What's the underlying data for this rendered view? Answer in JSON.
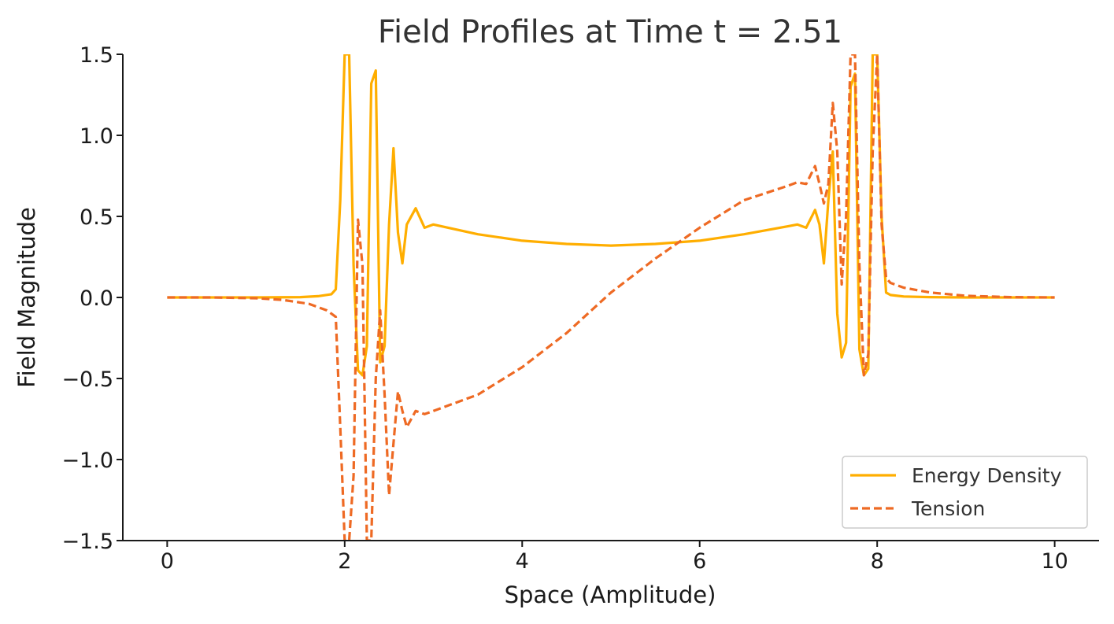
{
  "chart_data": {
    "type": "line",
    "title": "Field Profiles at Time t = 2.51",
    "xlabel": "Space (Amplitude)",
    "ylabel": "Field Magnitude",
    "xlim": [
      -0.5,
      10.5
    ],
    "ylim": [
      -1.5,
      1.5
    ],
    "xticks": [
      0,
      2,
      4,
      6,
      8,
      10
    ],
    "xtick_labels": [
      "0",
      "2",
      "4",
      "6",
      "8",
      "10"
    ],
    "yticks": [
      -1.5,
      -1.0,
      -0.5,
      0.0,
      0.5,
      1.0,
      1.5
    ],
    "ytick_labels": [
      "−1.5",
      "−1.0",
      "−0.5",
      "0.0",
      "0.5",
      "1.0",
      "1.5"
    ],
    "grid": false,
    "legend_position": "bottom-right",
    "series": [
      {
        "name": "Energy Density",
        "color": "#FFAE00",
        "linestyle": "solid",
        "x": [
          0,
          0.5,
          1.0,
          1.5,
          1.7,
          1.85,
          1.9,
          1.95,
          2.0,
          2.05,
          2.1,
          2.15,
          2.2,
          2.25,
          2.3,
          2.35,
          2.4,
          2.45,
          2.5,
          2.55,
          2.6,
          2.65,
          2.7,
          2.8,
          2.9,
          3.0,
          3.5,
          4.0,
          4.5,
          5.0,
          5.5,
          6.0,
          6.5,
          7.0,
          7.1,
          7.2,
          7.3,
          7.35,
          7.4,
          7.45,
          7.5,
          7.55,
          7.6,
          7.65,
          7.7,
          7.75,
          7.8,
          7.85,
          7.9,
          7.95,
          8.0,
          8.05,
          8.1,
          8.15,
          8.3,
          8.6,
          9.0,
          9.5,
          10.0
        ],
        "y": [
          0.0,
          0.0,
          0.0,
          0.002,
          0.008,
          0.02,
          0.05,
          0.6,
          1.5,
          1.5,
          0.2,
          -0.45,
          -0.48,
          -0.3,
          1.32,
          1.4,
          -0.4,
          -0.3,
          0.45,
          0.92,
          0.4,
          0.21,
          0.45,
          0.55,
          0.43,
          0.45,
          0.39,
          0.35,
          0.33,
          0.32,
          0.33,
          0.35,
          0.39,
          0.44,
          0.45,
          0.43,
          0.54,
          0.45,
          0.21,
          0.6,
          0.9,
          -0.1,
          -0.37,
          -0.28,
          1.3,
          1.38,
          -0.32,
          -0.48,
          -0.44,
          1.5,
          1.5,
          0.5,
          0.03,
          0.015,
          0.006,
          0.002,
          0.0,
          0.0,
          0.0
        ]
      },
      {
        "name": "Tension",
        "color": "#EE6A24",
        "linestyle": "dashed",
        "x": [
          0,
          0.5,
          1.0,
          1.3,
          1.6,
          1.8,
          1.85,
          1.9,
          1.95,
          2.0,
          2.05,
          2.1,
          2.15,
          2.2,
          2.25,
          2.3,
          2.35,
          2.4,
          2.45,
          2.5,
          2.55,
          2.6,
          2.65,
          2.7,
          2.8,
          2.9,
          3.0,
          3.5,
          4.0,
          4.5,
          5.0,
          5.5,
          6.0,
          6.5,
          7.0,
          7.1,
          7.2,
          7.3,
          7.35,
          7.4,
          7.45,
          7.5,
          7.55,
          7.6,
          7.65,
          7.7,
          7.75,
          7.8,
          7.85,
          7.9,
          7.95,
          8.0,
          8.05,
          8.1,
          8.15,
          8.3,
          8.6,
          9.0,
          9.5,
          10.0
        ],
        "y": [
          0.0,
          0.0,
          -0.005,
          -0.015,
          -0.04,
          -0.08,
          -0.1,
          -0.12,
          -0.8,
          -1.5,
          -1.5,
          -1.1,
          0.48,
          0.2,
          -1.5,
          -1.5,
          -0.5,
          -0.08,
          -0.6,
          -1.22,
          -0.9,
          -0.58,
          -0.7,
          -0.8,
          -0.7,
          -0.72,
          -0.7,
          -0.6,
          -0.43,
          -0.22,
          0.03,
          0.24,
          0.43,
          0.6,
          0.69,
          0.71,
          0.7,
          0.81,
          0.7,
          0.58,
          0.7,
          1.2,
          0.9,
          0.08,
          0.5,
          1.5,
          1.5,
          0.2,
          -0.48,
          -0.35,
          0.9,
          1.5,
          0.45,
          0.12,
          0.09,
          0.06,
          0.03,
          0.01,
          0.002,
          0.0
        ]
      }
    ]
  }
}
